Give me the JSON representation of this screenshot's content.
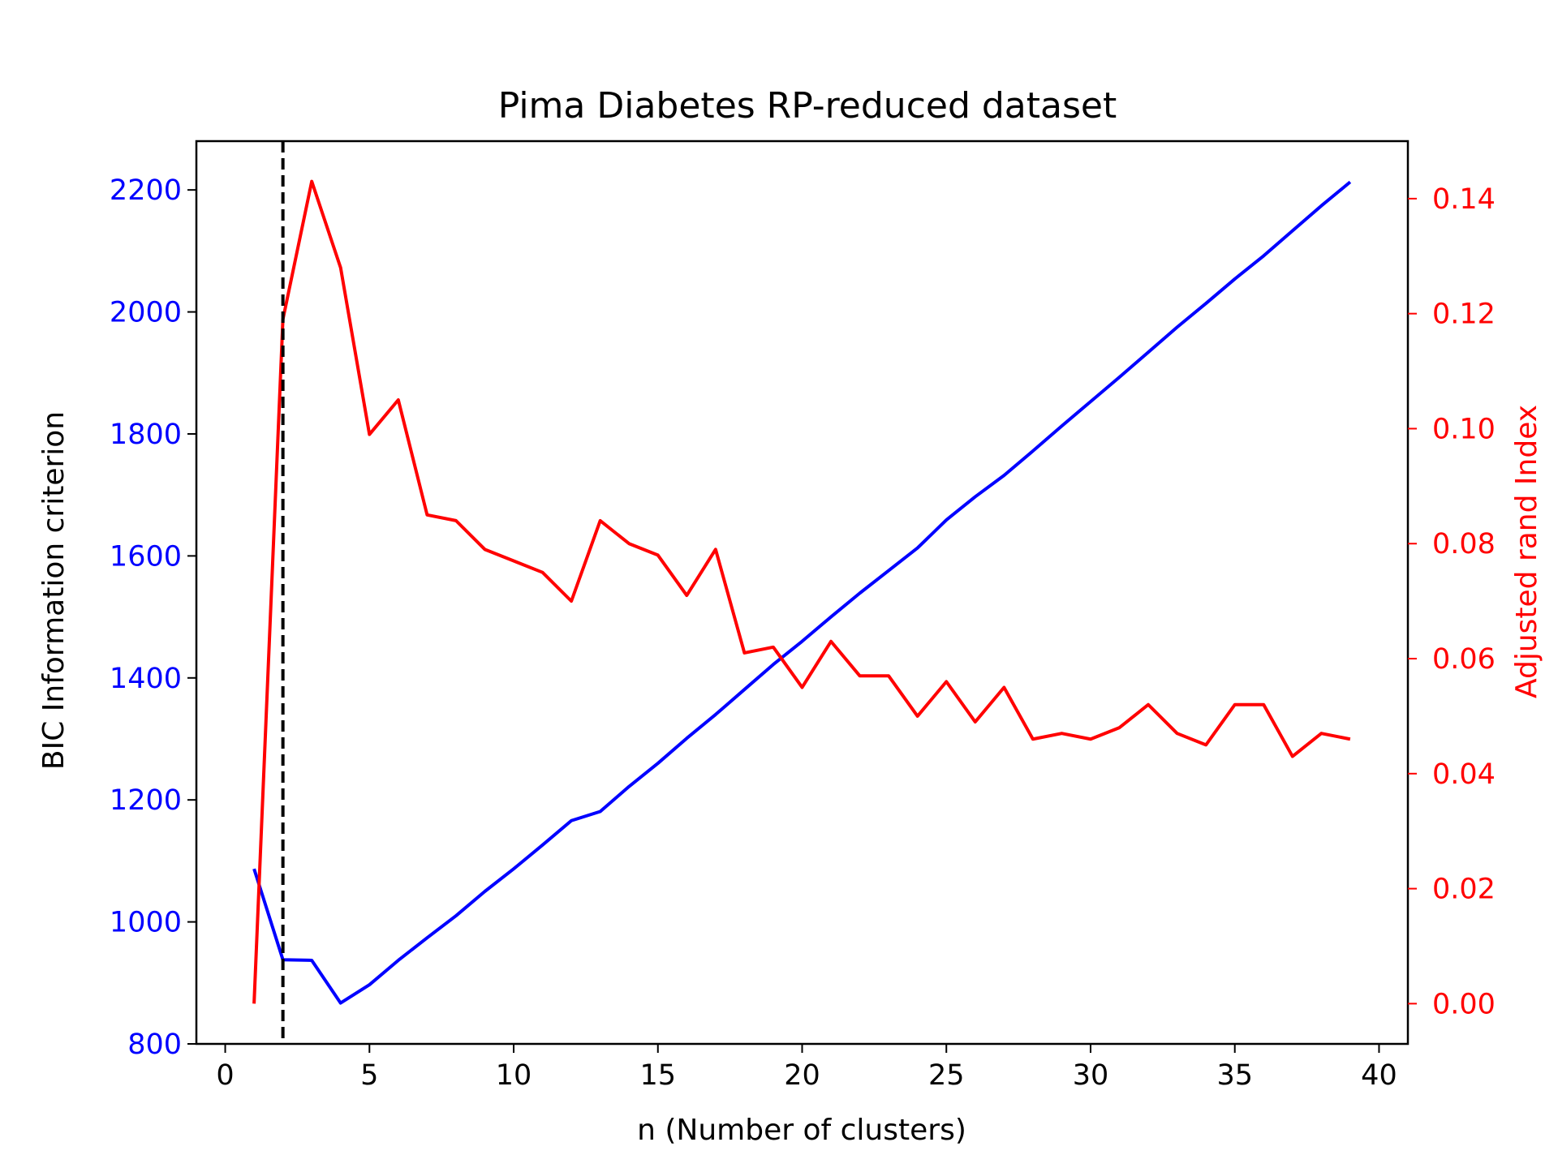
{
  "chart_data": {
    "type": "line",
    "title": "Pima Diabetes RP-reduced dataset",
    "xlabel": "n (Number of clusters)",
    "ylabel_left": "BIC Information criterion",
    "ylabel_right": "Adjusted rand Index",
    "xlim": [
      -1,
      41
    ],
    "ylim_left": [
      800,
      2280
    ],
    "ylim_right": [
      -0.007,
      0.15
    ],
    "x_ticks": [
      0,
      5,
      10,
      15,
      20,
      25,
      30,
      35,
      40
    ],
    "y_ticks_left": [
      800,
      1000,
      1200,
      1400,
      1600,
      1800,
      2000,
      2200
    ],
    "y_ticks_right": [
      0.0,
      0.02,
      0.04,
      0.06,
      0.08,
      0.1,
      0.12,
      0.14
    ],
    "x_tick_labels": [
      "0",
      "5",
      "10",
      "15",
      "20",
      "25",
      "30",
      "35",
      "40"
    ],
    "y_tick_labels_left": [
      "800",
      "1000",
      "1200",
      "1400",
      "1600",
      "1800",
      "2000",
      "2200"
    ],
    "y_tick_labels_right": [
      "0.00",
      "0.02",
      "0.04",
      "0.06",
      "0.08",
      "0.10",
      "0.12",
      "0.14"
    ],
    "grid": false,
    "vline": {
      "x": 2,
      "style": "dashed",
      "color": "#000000"
    },
    "x": [
      1,
      2,
      3,
      4,
      5,
      6,
      7,
      8,
      9,
      10,
      11,
      12,
      13,
      14,
      15,
      16,
      17,
      18,
      19,
      20,
      21,
      22,
      23,
      24,
      25,
      26,
      27,
      28,
      29,
      30,
      31,
      32,
      33,
      34,
      35,
      36,
      37,
      38,
      39
    ],
    "series": [
      {
        "axis": "left",
        "color": "#0000ff",
        "values": [
          1087,
          938,
          937,
          867,
          897,
          937,
          974,
          1010,
          1050,
          1087,
          1126,
          1166,
          1181,
          1222,
          1260,
          1301,
          1340,
          1381,
          1422,
          1460,
          1500,
          1539,
          1576,
          1613,
          1659,
          1697,
          1732,
          1772,
          1813,
          1853,
          1893,
          1934,
          1975,
          2014,
          2054,
          2092,
          2133,
          2174,
          2213
        ]
      },
      {
        "axis": "right",
        "color": "#ff0000",
        "values": [
          0.0,
          0.119,
          0.143,
          0.128,
          0.099,
          0.105,
          0.085,
          0.084,
          0.079,
          0.077,
          0.075,
          0.07,
          0.084,
          0.08,
          0.078,
          0.071,
          0.079,
          0.061,
          0.062,
          0.055,
          0.063,
          0.057,
          0.057,
          0.05,
          0.056,
          0.049,
          0.055,
          0.046,
          0.047,
          0.046,
          0.048,
          0.052,
          0.047,
          0.045,
          0.052,
          0.052,
          0.043,
          0.047,
          0.046
        ]
      }
    ]
  }
}
